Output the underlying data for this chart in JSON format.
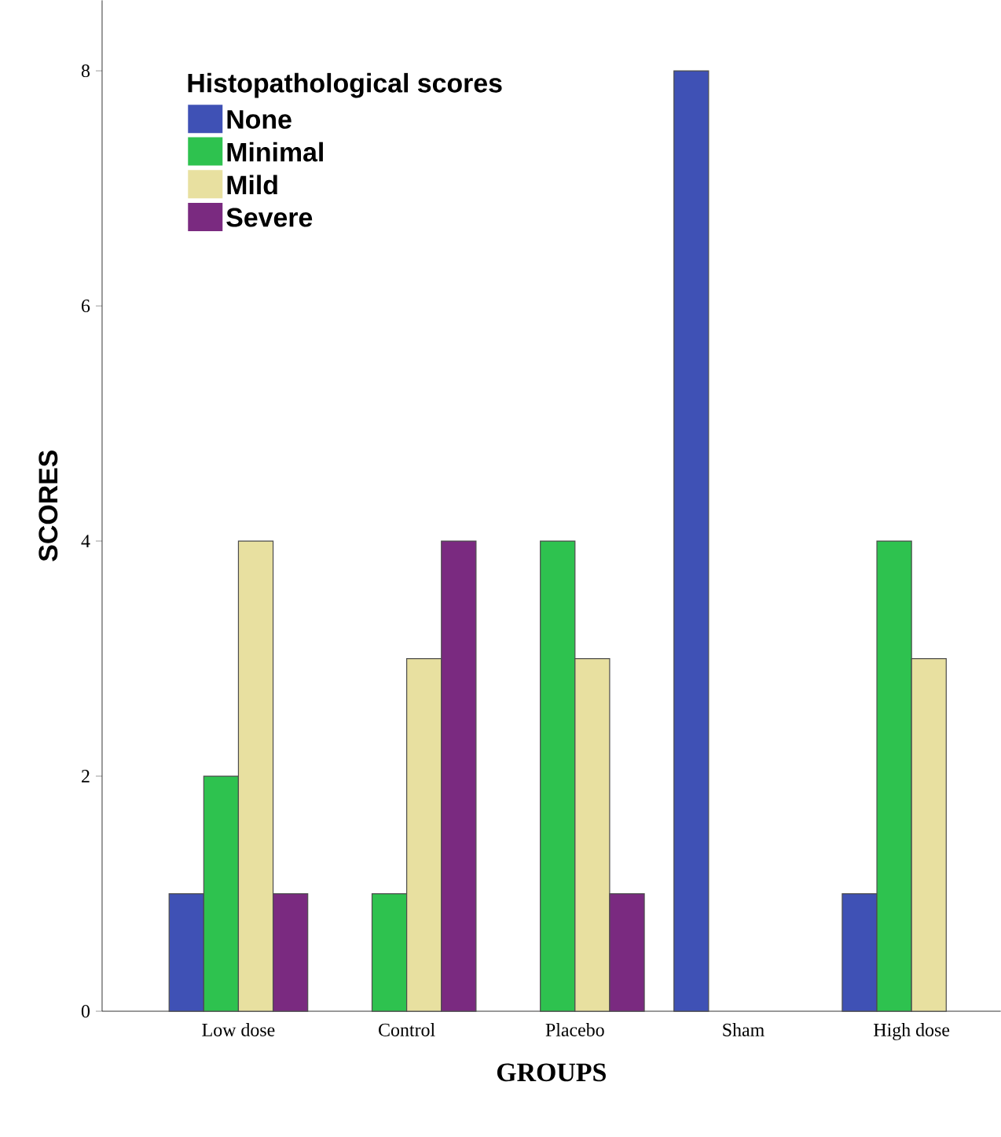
{
  "chart_data": {
    "type": "bar",
    "xlabel": "GROUPS",
    "ylabel": "SCORES",
    "legend_title": "Histopathological scores",
    "categories": [
      "Low dose",
      "Control",
      "Placebo",
      "Sham",
      "High dose"
    ],
    "series": [
      {
        "name": "None",
        "color": "#3f51b5",
        "values": [
          1,
          0,
          0,
          8,
          1
        ]
      },
      {
        "name": "Minimal",
        "color": "#2ec24f",
        "values": [
          2,
          1,
          4,
          0,
          4
        ]
      },
      {
        "name": "Mild",
        "color": "#e8e0a0",
        "values": [
          4,
          3,
          3,
          0,
          3
        ]
      },
      {
        "name": "Severe",
        "color": "#7a2a80",
        "values": [
          1,
          4,
          1,
          0,
          0
        ]
      }
    ],
    "ylim": [
      0,
      8.6
    ],
    "yticks": [
      0,
      2,
      4,
      6,
      8
    ],
    "grid": false,
    "legend": "top left"
  }
}
